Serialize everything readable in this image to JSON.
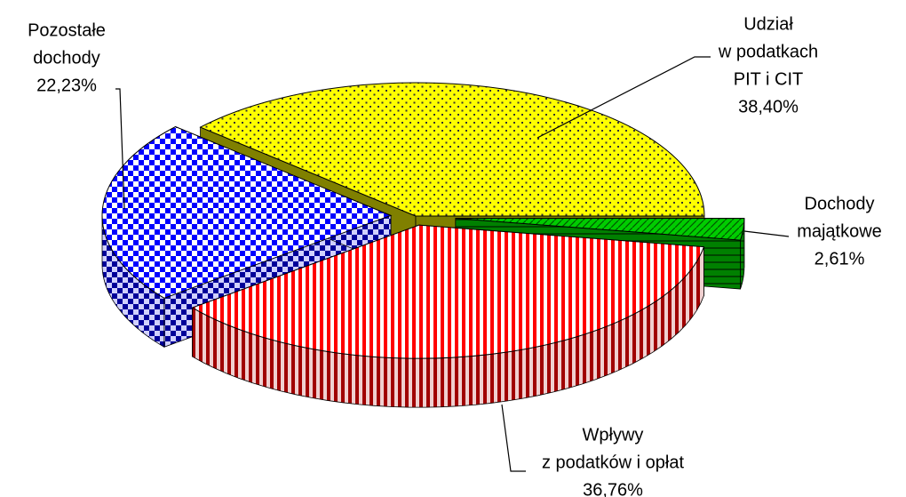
{
  "chart_data": {
    "type": "pie3d",
    "categories": [
      [
        "Udział",
        "w podatkach",
        "PIT i CIT"
      ],
      [
        "Dochody",
        "majątkowe"
      ],
      [
        "Wpływy",
        "z podatków i opłat"
      ],
      [
        "Pozostałe",
        "dochody"
      ]
    ],
    "values": [
      38.4,
      2.61,
      36.76,
      22.23
    ],
    "value_labels": [
      "38,40%",
      "2,61%",
      "36,76%",
      "22,23%"
    ],
    "colors": [
      "#ffff00",
      "#00cc00",
      "#ff0000",
      "#0000ff"
    ]
  }
}
